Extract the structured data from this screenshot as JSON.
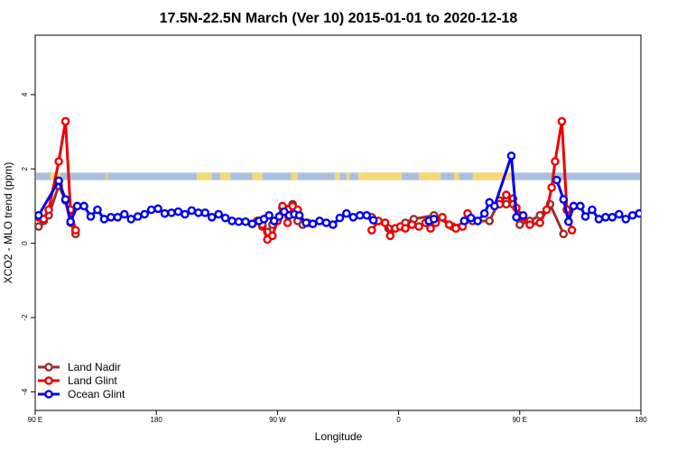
{
  "chart_data": {
    "type": "line",
    "title": "17.5N-22.5N March (Ver 10)   2015-01-01 to 2020-12-18",
    "xlabel": "Longitude",
    "ylabel": "XCO2 - MLO trend (ppm)",
    "xlim": [
      -180,
      180
    ],
    "ylim": [
      -4.5,
      5.6
    ],
    "x_ticks": [
      {
        "value": -180,
        "label": "90 E"
      },
      {
        "value": -108,
        "label": "180"
      },
      {
        "value": -36,
        "label": "90 W"
      },
      {
        "value": 36,
        "label": "0"
      },
      {
        "value": 108,
        "label": "90 E"
      },
      {
        "value": 180,
        "label": "180"
      }
    ],
    "y_ticks": [
      {
        "value": -4,
        "label": "-4"
      },
      {
        "value": -2,
        "label": "-2"
      },
      {
        "value": 0,
        "label": "0"
      },
      {
        "value": 2,
        "label": "2"
      },
      {
        "value": 4,
        "label": "4"
      }
    ],
    "grid": false,
    "legend_position": "bottom-left",
    "land_mask": {
      "y_range": [
        1.7,
        1.9
      ],
      "ocean_color": "#a9bfe0",
      "land_color": "#f7d873",
      "land_spans": [
        [
          -171,
          -165
        ],
        [
          -138,
          -137
        ],
        [
          -84,
          -75
        ],
        [
          -70,
          -64
        ],
        [
          -51,
          -45
        ],
        [
          -28,
          -24
        ],
        [
          -2,
          1
        ],
        [
          5,
          7
        ],
        [
          12,
          38
        ],
        [
          48,
          61
        ],
        [
          69,
          72
        ],
        [
          80,
          103
        ]
      ]
    },
    "series": [
      {
        "name": "Land Nadir",
        "color": "#9b2d2d",
        "points": [
          [
            -178,
            0.45
          ],
          [
            -175,
            0.6
          ],
          [
            -172,
            0.75
          ],
          [
            -166,
            1.55
          ],
          [
            -162,
            1.15
          ],
          [
            -159,
            0.55
          ],
          [
            -156,
            0.25
          ],
          [
            -45,
            0.45
          ],
          [
            -42,
            0.3
          ],
          [
            -39,
            0.5
          ],
          [
            -33,
            0.95
          ],
          [
            -27,
            1.05
          ],
          [
            -24,
            0.6
          ],
          [
            -21,
            0.5
          ],
          [
            -18,
            0.55
          ],
          [
            20,
            0.7
          ],
          [
            30,
            0.4
          ],
          [
            34,
            0.4
          ],
          [
            40,
            0.55
          ],
          [
            45,
            0.65
          ],
          [
            57,
            0.75
          ],
          [
            68,
            0.45
          ],
          [
            80,
            0.6
          ],
          [
            90,
            0.6
          ],
          [
            96,
            1.15
          ],
          [
            100,
            1.05
          ],
          [
            104,
            1.2
          ],
          [
            108,
            0.5
          ],
          [
            114,
            0.6
          ],
          [
            120,
            0.75
          ],
          [
            126,
            1.05
          ],
          [
            134,
            0.25
          ]
        ]
      },
      {
        "name": "Land Glint",
        "color": "#ee0000",
        "points": [
          [
            -178,
            0.7
          ],
          [
            -175,
            0.65
          ],
          [
            -172,
            0.9
          ],
          [
            -166,
            2.2
          ],
          [
            -162,
            3.28
          ],
          [
            -159,
            0.9
          ],
          [
            -156,
            0.35
          ],
          [
            -48,
            0.6
          ],
          [
            -45,
            0.5
          ],
          [
            -42,
            0.1
          ],
          [
            -39,
            0.2
          ],
          [
            -36,
            0.6
          ],
          [
            -33,
            1.0
          ],
          [
            -30,
            0.55
          ],
          [
            -27,
            1.0
          ],
          [
            -24,
            0.9
          ],
          [
            20,
            0.35
          ],
          [
            24,
            0.6
          ],
          [
            28,
            0.55
          ],
          [
            31,
            0.2
          ],
          [
            34,
            0.4
          ],
          [
            37,
            0.45
          ],
          [
            40,
            0.4
          ],
          [
            44,
            0.5
          ],
          [
            48,
            0.45
          ],
          [
            52,
            0.55
          ],
          [
            55,
            0.4
          ],
          [
            58,
            0.55
          ],
          [
            62,
            0.7
          ],
          [
            66,
            0.5
          ],
          [
            70,
            0.4
          ],
          [
            74,
            0.45
          ],
          [
            77,
            0.8
          ],
          [
            96,
            1.05
          ],
          [
            100,
            1.3
          ],
          [
            104,
            1.05
          ],
          [
            106,
            0.95
          ],
          [
            110,
            0.7
          ],
          [
            114,
            0.5
          ],
          [
            120,
            0.55
          ],
          [
            124,
            0.9
          ],
          [
            127,
            1.5
          ],
          [
            129,
            2.2
          ],
          [
            133,
            3.28
          ],
          [
            136,
            0.9
          ],
          [
            139,
            0.35
          ]
        ]
      },
      {
        "name": "Ocean Glint",
        "color": "#0000ee",
        "points": [
          [
            -178,
            0.75
          ],
          [
            -166,
            1.68
          ],
          [
            -162,
            1.18
          ],
          [
            -159,
            0.58
          ],
          [
            -155,
            1.0
          ],
          [
            -151,
            1.0
          ],
          [
            -147,
            0.72
          ],
          [
            -143,
            0.9
          ],
          [
            -139,
            0.65
          ],
          [
            -135,
            0.7
          ],
          [
            -131,
            0.7
          ],
          [
            -127,
            0.78
          ],
          [
            -123,
            0.65
          ],
          [
            -119,
            0.72
          ],
          [
            -115,
            0.78
          ],
          [
            -111,
            0.9
          ],
          [
            -107,
            0.93
          ],
          [
            -103,
            0.8
          ],
          [
            -99,
            0.82
          ],
          [
            -95,
            0.85
          ],
          [
            -91,
            0.78
          ],
          [
            -87,
            0.88
          ],
          [
            -83,
            0.82
          ],
          [
            -79,
            0.82
          ],
          [
            -75,
            0.7
          ],
          [
            -71,
            0.78
          ],
          [
            -67,
            0.68
          ],
          [
            -63,
            0.6
          ],
          [
            -59,
            0.58
          ],
          [
            -55,
            0.58
          ],
          [
            -51,
            0.52
          ],
          [
            -47,
            0.6
          ],
          [
            -44,
            0.65
          ],
          [
            -41,
            0.75
          ],
          [
            -38,
            0.6
          ],
          [
            -35,
            0.72
          ],
          [
            -32,
            0.85
          ],
          [
            -29,
            0.75
          ],
          [
            -26,
            0.78
          ],
          [
            -23,
            0.75
          ],
          [
            -19,
            0.55
          ],
          [
            -15,
            0.52
          ],
          [
            -11,
            0.6
          ],
          [
            -7,
            0.55
          ],
          [
            -3,
            0.5
          ],
          [
            1,
            0.68
          ],
          [
            5,
            0.8
          ],
          [
            9,
            0.7
          ],
          [
            13,
            0.75
          ],
          [
            17,
            0.75
          ],
          [
            21,
            0.62
          ],
          [
            54,
            0.6
          ],
          [
            57,
            0.65
          ],
          [
            75,
            0.6
          ],
          [
            79,
            0.68
          ],
          [
            83,
            0.6
          ],
          [
            87,
            0.8
          ],
          [
            90,
            1.1
          ],
          [
            93,
            1.0
          ],
          [
            103,
            2.35
          ],
          [
            106,
            0.7
          ],
          [
            110,
            0.75
          ],
          [
            130,
            1.7
          ],
          [
            134,
            1.18
          ],
          [
            137,
            0.58
          ],
          [
            140,
            1.0
          ],
          [
            144,
            1.0
          ],
          [
            147,
            0.72
          ],
          [
            151,
            0.9
          ],
          [
            155,
            0.65
          ],
          [
            159,
            0.7
          ],
          [
            163,
            0.7
          ],
          [
            167,
            0.78
          ],
          [
            171,
            0.65
          ],
          [
            175,
            0.75
          ],
          [
            179,
            0.8
          ],
          [
            183,
            0.9
          ]
        ]
      }
    ]
  }
}
